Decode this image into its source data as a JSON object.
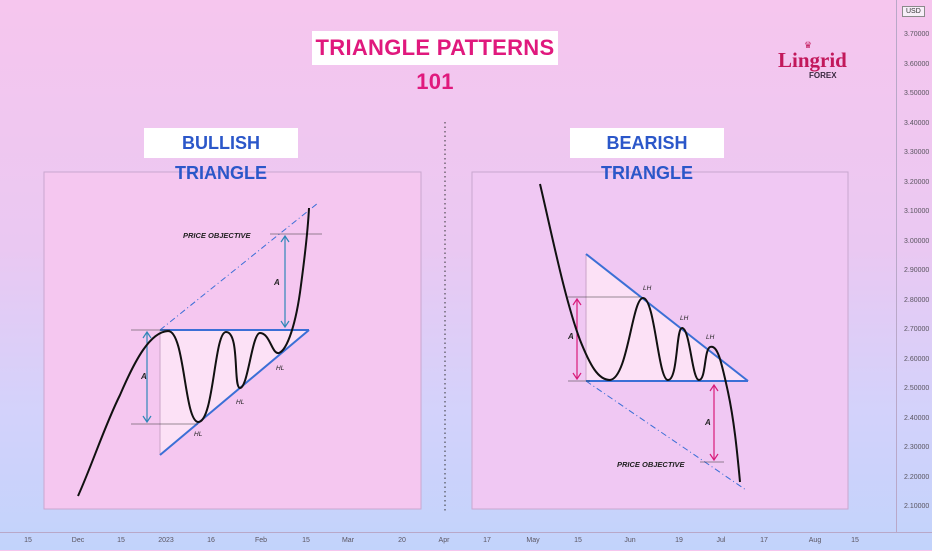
{
  "title": "TRIANGLE PATTERNS 101",
  "logo": {
    "name": "Lingrid",
    "sub": "FOREX",
    "crown": "♛"
  },
  "panels": {
    "bullish": {
      "title": "BULLISH TRIANGLE",
      "labels": {
        "price_objective": "PRICE OBJECTIVE",
        "measure": "A",
        "hl1": "HL",
        "hl2": "HL",
        "hl3": "HL"
      }
    },
    "bearish": {
      "title": "BEARISH TRIANGLE",
      "labels": {
        "price_objective": "PRICE OBJECTIVE",
        "measure_top": "A",
        "measure_bottom": "A",
        "lh1": "LH",
        "lh2": "LH",
        "lh3": "LH"
      }
    }
  },
  "price_axis": {
    "currency": "USD",
    "ticks": [
      "3.70000",
      "3.60000",
      "3.50000",
      "3.40000",
      "3.30000",
      "3.20000",
      "3.10000",
      "3.00000",
      "2.90000",
      "2.80000",
      "2.70000",
      "2.60000",
      "2.50000",
      "2.40000",
      "2.30000",
      "2.20000",
      "2.10000"
    ]
  },
  "time_axis": {
    "ticks": [
      "15",
      "Dec",
      "15",
      "2023",
      "16",
      "Feb",
      "15",
      "Mar",
      "20",
      "Apr",
      "17",
      "May",
      "15",
      "Jun",
      "19",
      "Jul",
      "17",
      "Aug",
      "15"
    ]
  },
  "colors": {
    "magenta": "#e0197d",
    "blue": "#2b57c9",
    "trend_line": "#3b6fd6",
    "measure_blue": "#2e86b7",
    "measure_pink": "#d81b7a"
  }
}
